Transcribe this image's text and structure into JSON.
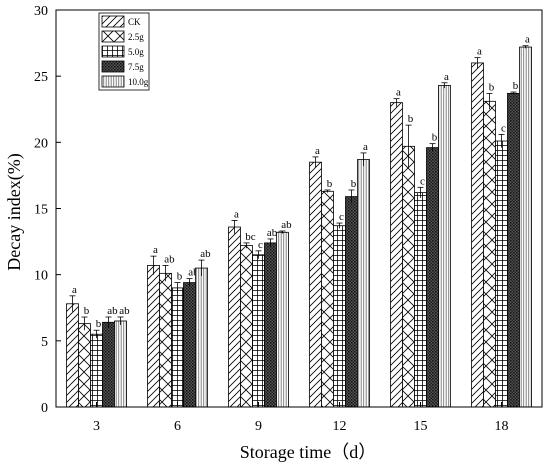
{
  "chart_data": {
    "type": "bar",
    "title": "",
    "xlabel": "Storage time（d）",
    "ylabel": "Decay index(%)",
    "ylim": [
      0,
      30
    ],
    "yticks": [
      0,
      5,
      10,
      15,
      20,
      25,
      30
    ],
    "categories": [
      "3",
      "6",
      "9",
      "12",
      "15",
      "18"
    ],
    "legend_position": "top-left",
    "series": [
      {
        "name": "CK",
        "pattern": "diag",
        "values": [
          7.8,
          10.7,
          13.6,
          18.5,
          23.0,
          26.0
        ],
        "errors": [
          0.6,
          0.7,
          0.5,
          0.4,
          0.3,
          0.4
        ],
        "sig": [
          "a",
          "a",
          "a",
          "a",
          "a",
          "a"
        ]
      },
      {
        "name": "2.5g",
        "pattern": "cross",
        "values": [
          6.3,
          10.1,
          12.2,
          16.3,
          19.7,
          23.1
        ],
        "errors": [
          0.5,
          0.6,
          0.2,
          0.1,
          1.6,
          0.6
        ],
        "sig": [
          "b",
          "ab",
          "bc",
          "b",
          "b",
          "b"
        ]
      },
      {
        "name": "5.0g",
        "pattern": "grid",
        "values": [
          5.5,
          9.0,
          11.5,
          13.7,
          16.2,
          20.1
        ],
        "errors": [
          0.3,
          0.4,
          0.3,
          0.2,
          0.4,
          0.5
        ],
        "sig": [
          "b",
          "b",
          "c",
          "c",
          "c",
          "c"
        ]
      },
      {
        "name": "7.5g",
        "pattern": "dense",
        "values": [
          6.4,
          9.4,
          12.4,
          15.9,
          19.6,
          23.7
        ],
        "errors": [
          0.4,
          0.3,
          0.3,
          0.5,
          0.3,
          0.1
        ],
        "sig": [
          "ab",
          "ab",
          "abc",
          "b",
          "b",
          "b"
        ]
      },
      {
        "name": "10.0g",
        "pattern": "vertical",
        "values": [
          6.5,
          10.5,
          13.2,
          18.7,
          24.3,
          27.2
        ],
        "errors": [
          0.3,
          0.6,
          0.1,
          0.5,
          0.2,
          0.1
        ],
        "sig": [
          "ab",
          "ab",
          "ab",
          "a",
          "a",
          "a"
        ]
      }
    ]
  }
}
